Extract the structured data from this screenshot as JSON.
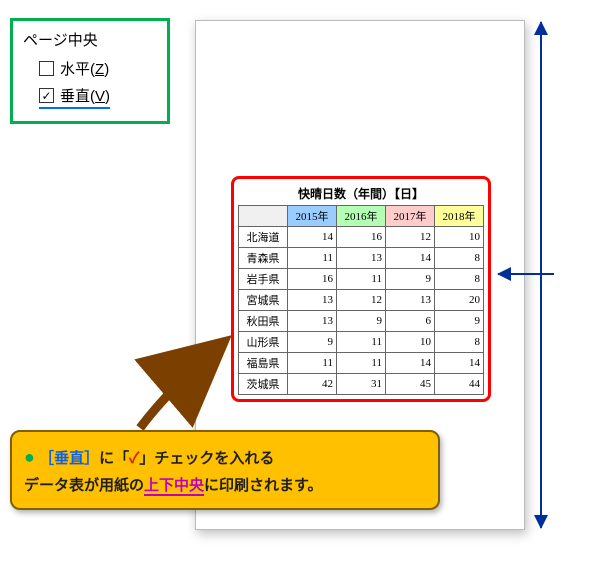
{
  "settings": {
    "title": "ページ中央",
    "horizontal": {
      "label": "水平",
      "mnemonic": "Z",
      "checked": false
    },
    "vertical": {
      "label": "垂直",
      "mnemonic": "V",
      "checked": true
    }
  },
  "table": {
    "title": "快晴日数（年間）【日】",
    "columns": [
      "2015年",
      "2016年",
      "2017年",
      "2018年"
    ],
    "column_colors": [
      "#99ccff",
      "#b3ffb3",
      "#ffcccc",
      "#ffff99"
    ],
    "rows": [
      {
        "label": "北海道",
        "values": [
          14,
          16,
          12,
          10
        ]
      },
      {
        "label": "青森県",
        "values": [
          11,
          13,
          14,
          8
        ]
      },
      {
        "label": "岩手県",
        "values": [
          16,
          11,
          9,
          8
        ]
      },
      {
        "label": "宮城県",
        "values": [
          13,
          12,
          13,
          20
        ]
      },
      {
        "label": "秋田県",
        "values": [
          13,
          9,
          6,
          9
        ]
      },
      {
        "label": "山形県",
        "values": [
          9,
          11,
          10,
          8
        ]
      },
      {
        "label": "福島県",
        "values": [
          11,
          11,
          14,
          14
        ]
      },
      {
        "label": "茨城県",
        "values": [
          42,
          31,
          45,
          44
        ]
      }
    ],
    "border_color": "#ff0000"
  },
  "note": {
    "part1_bracket_open": "［",
    "part1_keyword": "垂直",
    "part1_bracket_close": "］",
    "part1_mid": "に「",
    "part1_check": "✓",
    "part1_tail": "」チェックを入れる",
    "part2_head": "データ表が用紙の",
    "part2_keyword": "上下中央",
    "part2_tail": "に印刷されます。"
  },
  "colors": {
    "panel_border": "#00b050",
    "arrow_blue": "#002f9c",
    "arrow_brown": "#7b3f00",
    "note_bg": "#ffc000",
    "note_border": "#7f6000"
  }
}
